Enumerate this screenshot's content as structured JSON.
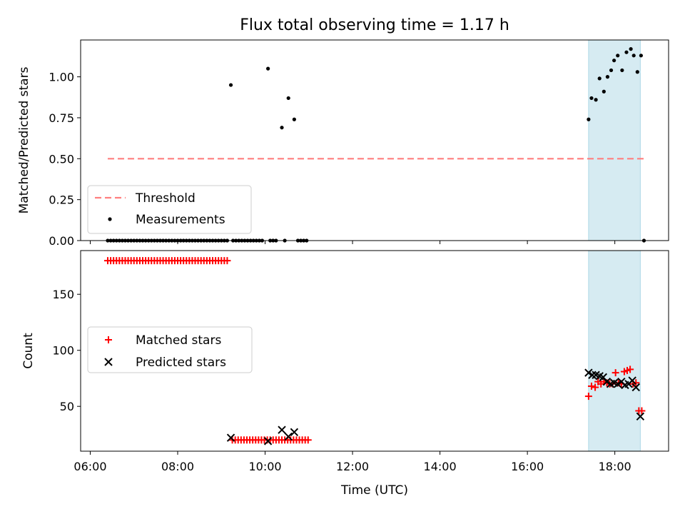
{
  "chart_data": [
    {
      "type": "scatter",
      "title": "Flux total observing time = 1.17 h",
      "ylabel": "Matched/Predicted stars",
      "xlim_hours": [
        5.78,
        19.23
      ],
      "ylim": [
        0,
        1.225
      ],
      "yticks": [
        "0.00",
        "0.25",
        "0.50",
        "0.75",
        "1.00"
      ],
      "grid": false,
      "legend_position": "lower-left",
      "shaded_span": {
        "x_start": "17:24",
        "x_end": "18:35",
        "color": "#add8e6"
      },
      "threshold": {
        "name": "Threshold",
        "value": 0.5,
        "x_start": "06:24",
        "x_end": "18:40",
        "color": "#ff7f7f"
      },
      "measurements": {
        "name": "Measurements",
        "color": "#000000",
        "points": [
          [
            "09:13",
            0.95
          ],
          [
            "10:04",
            1.05
          ],
          [
            "10:23",
            0.69
          ],
          [
            "10:32",
            0.87
          ],
          [
            "10:40",
            0.74
          ],
          [
            "17:24",
            0.74
          ],
          [
            "17:28",
            0.87
          ],
          [
            "17:34",
            0.86
          ],
          [
            "17:39",
            0.99
          ],
          [
            "17:45",
            0.91
          ],
          [
            "17:50",
            1.0
          ],
          [
            "17:55",
            1.04
          ],
          [
            "17:59",
            1.1
          ],
          [
            "18:04",
            1.13
          ],
          [
            "18:10",
            1.04
          ],
          [
            "18:16",
            1.15
          ],
          [
            "18:22",
            1.17
          ],
          [
            "18:26",
            1.13
          ],
          [
            "18:31",
            1.03
          ],
          [
            "18:36",
            1.13
          ],
          [
            "18:40",
            0.0
          ]
        ],
        "zero_runs": [
          {
            "start": "06:24",
            "end": "09:09",
            "step_min": 4
          },
          {
            "start": "09:16",
            "end": "09:59",
            "step_min": 4
          },
          {
            "start": "10:07",
            "end": "10:18",
            "step_min": 4
          },
          {
            "start": "10:45",
            "end": "10:58",
            "step_min": 4
          }
        ],
        "zero_points": [
          "10:27"
        ]
      }
    },
    {
      "type": "scatter",
      "xlabel": "Time (UTC)",
      "ylabel": "Count",
      "xlim_hours": [
        5.78,
        19.23
      ],
      "ylim": [
        10,
        189
      ],
      "yticks": [
        "50",
        "100",
        "150"
      ],
      "xticks": [
        "06:00",
        "08:00",
        "10:00",
        "12:00",
        "14:00",
        "16:00",
        "18:00"
      ],
      "grid": false,
      "legend_position": "center-left",
      "shaded_span": {
        "x_start": "17:24",
        "x_end": "18:35",
        "color": "#add8e6"
      },
      "series": [
        {
          "name": "Matched stars",
          "marker": "plus",
          "color": "#ff0000",
          "runs": [
            {
              "start": "06:24",
              "end": "09:11",
              "step_min": 4,
              "value": 180
            },
            {
              "start": "09:15",
              "end": "11:00",
              "step_min": 4,
              "value": 20
            }
          ],
          "points": [
            [
              "17:24",
              59
            ],
            [
              "17:28",
              68
            ],
            [
              "17:33",
              67
            ],
            [
              "17:37",
              72
            ],
            [
              "17:41",
              70
            ],
            [
              "17:45",
              72
            ],
            [
              "17:49",
              71
            ],
            [
              "17:53",
              70
            ],
            [
              "17:57",
              70
            ],
            [
              "18:01",
              80
            ],
            [
              "18:05",
              71
            ],
            [
              "18:09",
              70
            ],
            [
              "18:13",
              81
            ],
            [
              "18:17",
              82
            ],
            [
              "18:21",
              83
            ],
            [
              "18:25",
              70
            ],
            [
              "18:29",
              71
            ],
            [
              "18:33",
              46
            ],
            [
              "18:37",
              46
            ]
          ]
        },
        {
          "name": "Predicted stars",
          "marker": "x",
          "color": "#000000",
          "points": [
            [
              "09:13",
              22
            ],
            [
              "10:04",
              19
            ],
            [
              "10:23",
              29
            ],
            [
              "10:32",
              23
            ],
            [
              "10:40",
              27
            ],
            [
              "17:24",
              80
            ],
            [
              "17:29",
              78
            ],
            [
              "17:34",
              78
            ],
            [
              "17:39",
              77
            ],
            [
              "17:44",
              76
            ],
            [
              "17:49",
              72
            ],
            [
              "17:54",
              70
            ],
            [
              "17:59",
              71
            ],
            [
              "18:04",
              70
            ],
            [
              "18:09",
              72
            ],
            [
              "18:14",
              69
            ],
            [
              "18:19",
              70
            ],
            [
              "18:24",
              73
            ],
            [
              "18:29",
              67
            ],
            [
              "18:35",
              41
            ]
          ]
        }
      ]
    }
  ]
}
